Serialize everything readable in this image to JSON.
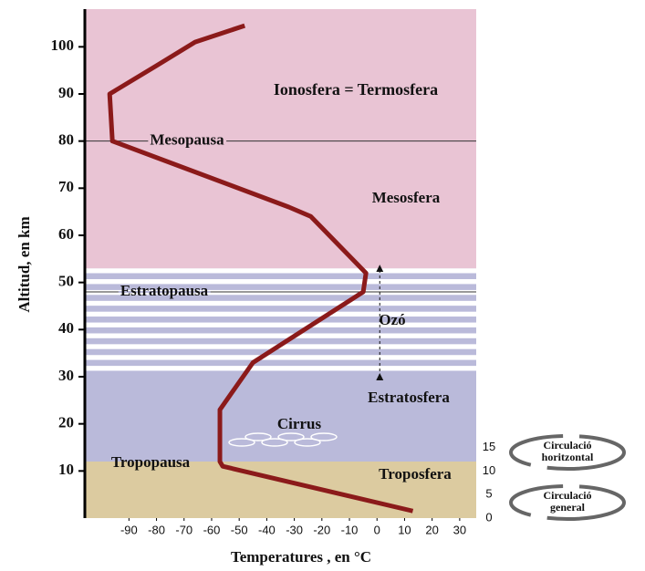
{
  "chart_data": {
    "type": "line",
    "x_label": "Temperatures , en °C",
    "y_label": "Altitud, en km",
    "x": [
      13,
      -56,
      -57,
      -57,
      -45,
      -5,
      -4,
      -14,
      -24,
      -32,
      -96,
      -97,
      -80,
      -66,
      -48
    ],
    "values": [
      1.5,
      11,
      12,
      23,
      33,
      48,
      52,
      58,
      64,
      66,
      80,
      90,
      96,
      101,
      104.5
    ],
    "color": "#8b1a1a",
    "xlim": [
      -106,
      36
    ],
    "ylim": [
      0,
      108
    ],
    "xticks": [
      -90,
      -80,
      -70,
      -60,
      -50,
      -40,
      -30,
      -20,
      -10,
      0,
      10,
      20,
      30
    ],
    "yticks": [
      10,
      20,
      30,
      40,
      50,
      60,
      70,
      80,
      90,
      100
    ],
    "bands": [
      {
        "from": 0,
        "to": 12,
        "color": "#dccba0"
      },
      {
        "from": 12,
        "to": 30,
        "color": "#babada"
      },
      {
        "from": 30,
        "to": 53,
        "color": "#babada",
        "striped": true
      },
      {
        "from": 53,
        "to": 108,
        "color": "#e9c4d4"
      }
    ],
    "reference_lines": [
      {
        "value": 80,
        "label": "Mesopausa"
      },
      {
        "value": 48,
        "label": "Estratopausa"
      }
    ],
    "ozone_range": [
      30,
      53
    ],
    "annotations": [
      "Ionosfera = Termosfera",
      "Mesosfera",
      "Ozó",
      "Estratosfera",
      "Cirrus",
      "Tropopausa",
      "Troposfera"
    ],
    "side_ticks": [
      0,
      5,
      10,
      15
    ],
    "side_labels": [
      [
        "Circulació",
        "horitzontal"
      ],
      [
        "Circulació",
        "general"
      ]
    ]
  }
}
